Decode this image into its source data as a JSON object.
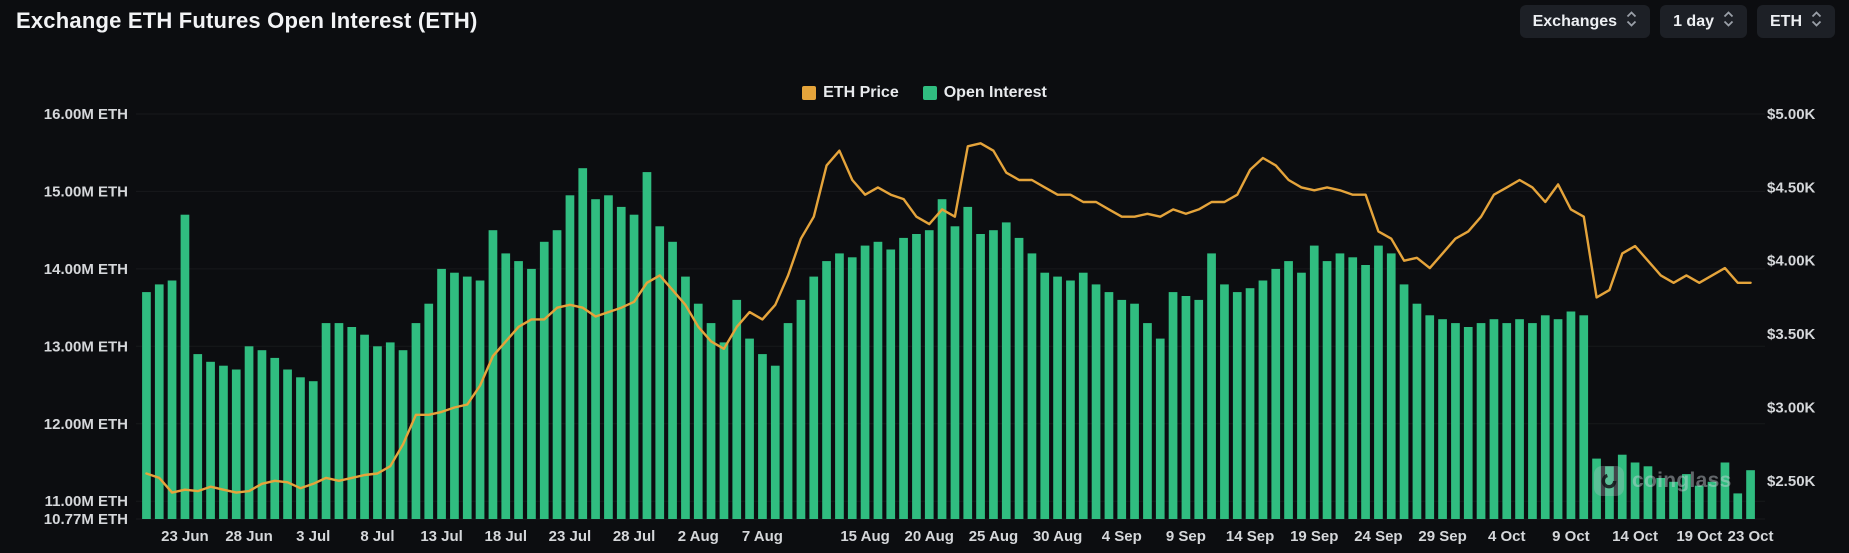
{
  "header": {
    "title": "Exchange ETH Futures Open Interest (ETH)",
    "controls": [
      {
        "label": "Exchanges"
      },
      {
        "label": "1 day"
      },
      {
        "label": "ETH"
      }
    ]
  },
  "legend": [
    {
      "label": "ETH Price",
      "color": "#e5a43b"
    },
    {
      "label": "Open Interest",
      "color": "#30bd80"
    }
  ],
  "watermark": {
    "text": "coinglass"
  },
  "chart_data": {
    "type": "bar",
    "title": "Exchange ETH Futures Open Interest (ETH)",
    "left_axis": {
      "unit": "M ETH",
      "min": 10.77,
      "max": 16.0,
      "ticks": [
        {
          "label": "16.00M ETH",
          "value": 16.0
        },
        {
          "label": "15.00M ETH",
          "value": 15.0
        },
        {
          "label": "14.00M ETH",
          "value": 14.0
        },
        {
          "label": "13.00M ETH",
          "value": 13.0
        },
        {
          "label": "12.00M ETH",
          "value": 12.0
        },
        {
          "label": "11.00M ETH",
          "value": 11.0
        },
        {
          "label": "10.77M ETH",
          "value": 10.77
        }
      ]
    },
    "right_axis": {
      "unit": "$K",
      "min": 2.24,
      "max": 5.0,
      "ticks": [
        {
          "label": "$5.00K",
          "value": 5.0
        },
        {
          "label": "$4.50K",
          "value": 4.5
        },
        {
          "label": "$4.00K",
          "value": 4.0
        },
        {
          "label": "$3.50K",
          "value": 3.5
        },
        {
          "label": "$3.00K",
          "value": 3.0
        },
        {
          "label": "$2.50K",
          "value": 2.5
        }
      ]
    },
    "x_labels": [
      {
        "label": "23 Jun",
        "index": 3
      },
      {
        "label": "28 Jun",
        "index": 8
      },
      {
        "label": "3 Jul",
        "index": 13
      },
      {
        "label": "8 Jul",
        "index": 18
      },
      {
        "label": "13 Jul",
        "index": 23
      },
      {
        "label": "18 Jul",
        "index": 28
      },
      {
        "label": "23 Jul",
        "index": 33
      },
      {
        "label": "28 Jul",
        "index": 38
      },
      {
        "label": "2 Aug",
        "index": 43
      },
      {
        "label": "7 Aug",
        "index": 48
      },
      {
        "label": "15 Aug",
        "index": 56
      },
      {
        "label": "20 Aug",
        "index": 61
      },
      {
        "label": "25 Aug",
        "index": 66
      },
      {
        "label": "30 Aug",
        "index": 71
      },
      {
        "label": "4 Sep",
        "index": 76
      },
      {
        "label": "9 Sep",
        "index": 81
      },
      {
        "label": "14 Sep",
        "index": 86
      },
      {
        "label": "19 Sep",
        "index": 91
      },
      {
        "label": "24 Sep",
        "index": 96
      },
      {
        "label": "29 Sep",
        "index": 101
      },
      {
        "label": "4 Oct",
        "index": 106
      },
      {
        "label": "9 Oct",
        "index": 111
      },
      {
        "label": "14 Oct",
        "index": 116
      },
      {
        "label": "19 Oct",
        "index": 121
      },
      {
        "label": "23 Oct",
        "index": 125
      }
    ],
    "series": [
      {
        "name": "Open Interest",
        "type": "bar",
        "axis": "left",
        "color": "#30bd80",
        "values": [
          13.7,
          13.8,
          13.85,
          14.7,
          12.9,
          12.8,
          12.75,
          12.7,
          13.0,
          12.95,
          12.85,
          12.7,
          12.6,
          12.55,
          13.3,
          13.3,
          13.25,
          13.15,
          13.0,
          13.05,
          12.95,
          13.3,
          13.55,
          14.0,
          13.95,
          13.9,
          13.85,
          14.5,
          14.2,
          14.1,
          14.0,
          14.35,
          14.5,
          14.95,
          15.3,
          14.9,
          14.95,
          14.8,
          14.7,
          15.25,
          14.55,
          14.35,
          13.9,
          13.55,
          13.3,
          13.05,
          13.6,
          13.1,
          12.9,
          12.75,
          13.3,
          13.6,
          13.9,
          14.1,
          14.2,
          14.15,
          14.3,
          14.35,
          14.25,
          14.4,
          14.45,
          14.5,
          14.9,
          14.55,
          14.8,
          14.45,
          14.5,
          14.6,
          14.4,
          14.2,
          13.95,
          13.9,
          13.85,
          13.95,
          13.8,
          13.7,
          13.6,
          13.55,
          13.3,
          13.1,
          13.7,
          13.65,
          13.6,
          14.2,
          13.8,
          13.7,
          13.75,
          13.85,
          14.0,
          14.1,
          13.95,
          14.3,
          14.1,
          14.2,
          14.15,
          14.05,
          14.3,
          14.2,
          13.8,
          13.55,
          13.4,
          13.35,
          13.3,
          13.25,
          13.3,
          13.35,
          13.3,
          13.35,
          13.3,
          13.4,
          13.35,
          13.45,
          13.4,
          11.55,
          11.45,
          11.6,
          11.5,
          11.45,
          11.3,
          11.25,
          11.35,
          11.2,
          11.25,
          11.5,
          11.1,
          11.4
        ]
      },
      {
        "name": "ETH Price",
        "type": "line",
        "axis": "right",
        "color": "#e5a43b",
        "values": [
          2.55,
          2.52,
          2.42,
          2.44,
          2.43,
          2.46,
          2.44,
          2.42,
          2.43,
          2.48,
          2.5,
          2.49,
          2.45,
          2.48,
          2.52,
          2.5,
          2.52,
          2.54,
          2.55,
          2.6,
          2.75,
          2.95,
          2.95,
          2.97,
          3.0,
          3.02,
          3.15,
          3.35,
          3.45,
          3.55,
          3.6,
          3.6,
          3.68,
          3.7,
          3.68,
          3.62,
          3.65,
          3.68,
          3.72,
          3.85,
          3.9,
          3.8,
          3.7,
          3.55,
          3.45,
          3.4,
          3.55,
          3.65,
          3.6,
          3.7,
          3.9,
          4.15,
          4.3,
          4.65,
          4.75,
          4.55,
          4.45,
          4.5,
          4.45,
          4.42,
          4.3,
          4.25,
          4.35,
          4.3,
          4.78,
          4.8,
          4.75,
          4.6,
          4.55,
          4.55,
          4.5,
          4.45,
          4.45,
          4.4,
          4.4,
          4.35,
          4.3,
          4.3,
          4.32,
          4.3,
          4.35,
          4.32,
          4.35,
          4.4,
          4.4,
          4.45,
          4.62,
          4.7,
          4.65,
          4.55,
          4.5,
          4.48,
          4.5,
          4.48,
          4.45,
          4.45,
          4.2,
          4.15,
          4.0,
          4.02,
          3.95,
          4.05,
          4.15,
          4.2,
          4.3,
          4.45,
          4.5,
          4.55,
          4.5,
          4.4,
          4.52,
          4.35,
          4.3,
          3.75,
          3.8,
          4.05,
          4.1,
          4.0,
          3.9,
          3.85,
          3.9,
          3.85,
          3.9,
          3.95,
          3.85,
          3.85
        ]
      }
    ]
  }
}
